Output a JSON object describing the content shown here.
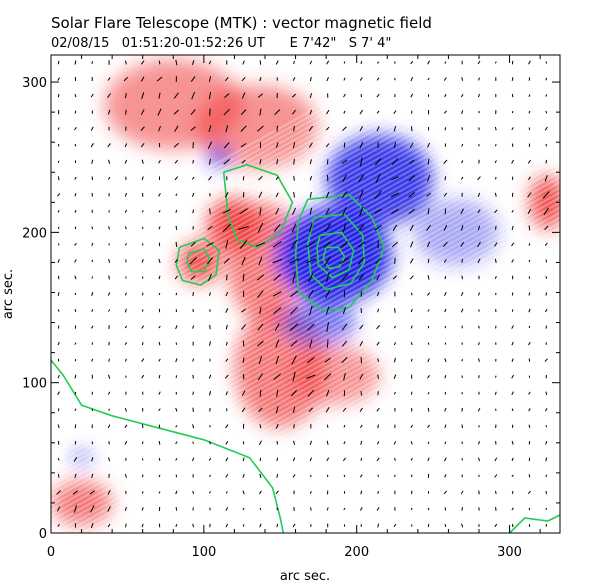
{
  "chart_data": {
    "type": "heatmap",
    "title": "Solar Flare Telescope (MTK) : vector magnetic field",
    "subtitle": "02/08/15   01:51:20-01:52:26 UT      E 7'42\"   S 7' 4\"",
    "xlabel": "arc sec.",
    "ylabel": "arc sec.",
    "xlim": [
      0,
      333
    ],
    "ylim": [
      0,
      318
    ],
    "xticks": [
      0,
      100,
      200,
      300
    ],
    "yticks": [
      0,
      100,
      200,
      300
    ],
    "grid": false,
    "colors": {
      "positive_polarity": "#f03a3a",
      "negative_polarity": "#2222e6",
      "background": "#ffffff",
      "contour": "#22cc55",
      "vectors": "#000000"
    },
    "regions": [
      {
        "polarity": "positive",
        "x": 80,
        "y": 285,
        "rx": 45,
        "ry": 30,
        "strength": 0.55
      },
      {
        "polarity": "positive",
        "x": 135,
        "y": 270,
        "rx": 40,
        "ry": 28,
        "strength": 0.55
      },
      {
        "polarity": "positive",
        "x": 120,
        "y": 205,
        "rx": 18,
        "ry": 18,
        "strength": 0.95
      },
      {
        "polarity": "positive",
        "x": 97,
        "y": 180,
        "rx": 14,
        "ry": 14,
        "strength": 0.9
      },
      {
        "polarity": "positive",
        "x": 140,
        "y": 180,
        "rx": 25,
        "ry": 40,
        "strength": 0.7
      },
      {
        "polarity": "positive",
        "x": 150,
        "y": 110,
        "rx": 30,
        "ry": 40,
        "strength": 0.7
      },
      {
        "polarity": "positive",
        "x": 185,
        "y": 105,
        "rx": 30,
        "ry": 20,
        "strength": 0.55
      },
      {
        "polarity": "positive",
        "x": 20,
        "y": 20,
        "rx": 20,
        "ry": 15,
        "strength": 0.7
      },
      {
        "polarity": "positive",
        "x": 325,
        "y": 220,
        "rx": 12,
        "ry": 18,
        "strength": 0.9
      },
      {
        "polarity": "negative",
        "x": 185,
        "y": 185,
        "rx": 38,
        "ry": 32,
        "strength": 1.0
      },
      {
        "polarity": "negative",
        "x": 215,
        "y": 235,
        "rx": 35,
        "ry": 30,
        "strength": 0.9
      },
      {
        "polarity": "negative",
        "x": 175,
        "y": 140,
        "rx": 25,
        "ry": 15,
        "strength": 0.6
      },
      {
        "polarity": "negative",
        "x": 265,
        "y": 200,
        "rx": 28,
        "ry": 22,
        "strength": 0.4
      },
      {
        "polarity": "negative",
        "x": 110,
        "y": 250,
        "rx": 8,
        "ry": 8,
        "strength": 0.6
      },
      {
        "polarity": "negative",
        "x": 20,
        "y": 50,
        "rx": 6,
        "ry": 5,
        "strength": 0.6
      }
    ],
    "contours": [
      {
        "points": [
          [
            168,
            222
          ],
          [
            195,
            225
          ],
          [
            210,
            210
          ],
          [
            218,
            190
          ],
          [
            210,
            168
          ],
          [
            195,
            150
          ],
          [
            178,
            148
          ],
          [
            162,
            160
          ],
          [
            160,
            185
          ],
          [
            162,
            208
          ],
          [
            168,
            222
          ]
        ]
      },
      {
        "points": [
          [
            172,
            210
          ],
          [
            192,
            212
          ],
          [
            204,
            198
          ],
          [
            205,
            180
          ],
          [
            196,
            166
          ],
          [
            180,
            162
          ],
          [
            170,
            172
          ],
          [
            168,
            192
          ],
          [
            172,
            210
          ]
        ]
      },
      {
        "points": [
          [
            176,
            198
          ],
          [
            190,
            200
          ],
          [
            198,
            188
          ],
          [
            195,
            175
          ],
          [
            184,
            170
          ],
          [
            175,
            178
          ],
          [
            174,
            190
          ],
          [
            176,
            198
          ]
        ]
      },
      {
        "points": [
          [
            180,
            190
          ],
          [
            188,
            190
          ],
          [
            192,
            184
          ],
          [
            189,
            177
          ],
          [
            182,
            176
          ],
          [
            178,
            182
          ],
          [
            180,
            190
          ]
        ]
      },
      {
        "points": [
          [
            84,
            190
          ],
          [
            100,
            196
          ],
          [
            110,
            188
          ],
          [
            108,
            172
          ],
          [
            98,
            165
          ],
          [
            86,
            168
          ],
          [
            82,
            178
          ],
          [
            84,
            190
          ]
        ]
      },
      {
        "points": [
          [
            90,
            186
          ],
          [
            100,
            189
          ],
          [
            104,
            182
          ],
          [
            100,
            174
          ],
          [
            92,
            174
          ],
          [
            89,
            180
          ],
          [
            90,
            186
          ]
        ]
      },
      {
        "points": [
          [
            113,
            240
          ],
          [
            128,
            245
          ],
          [
            148,
            238
          ],
          [
            158,
            220
          ],
          [
            150,
            200
          ],
          [
            135,
            190
          ],
          [
            122,
            195
          ],
          [
            116,
            210
          ],
          [
            113,
            240
          ]
        ]
      },
      {
        "points": [
          [
            0,
            115
          ],
          [
            8,
            105
          ],
          [
            20,
            85
          ],
          [
            40,
            78
          ],
          [
            70,
            70
          ],
          [
            100,
            62
          ],
          [
            130,
            50
          ],
          [
            145,
            30
          ],
          [
            150,
            10
          ],
          [
            152,
            0
          ]
        ]
      },
      {
        "points": [
          [
            300,
            0
          ],
          [
            310,
            10
          ],
          [
            325,
            8
          ],
          [
            333,
            12
          ]
        ]
      }
    ]
  }
}
